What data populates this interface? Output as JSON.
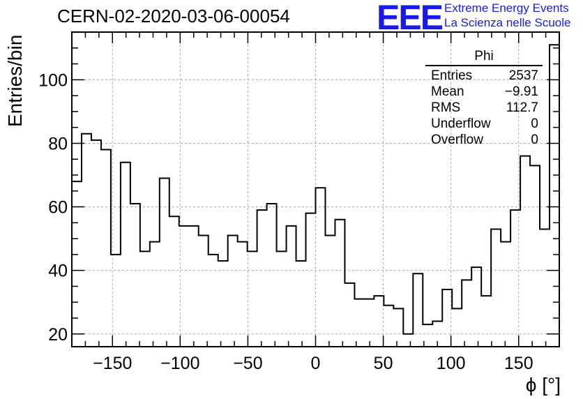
{
  "header": {
    "run_title": "CERN-02-2020-03-06-00054",
    "logo_mark": "EEE",
    "logo_line1": "Extreme Energy Events",
    "logo_line2": "La Scienza nelle Scuole"
  },
  "stats_box": {
    "title": "Phi",
    "rows": [
      {
        "label": "Entries",
        "value": "2537"
      },
      {
        "label": "Mean",
        "value": "−9.91"
      },
      {
        "label": "RMS",
        "value": "112.7"
      },
      {
        "label": "Underflow",
        "value": "0"
      },
      {
        "label": "Overflow",
        "value": "0"
      }
    ]
  },
  "colors": {
    "logo": "#1a1ae6",
    "line": "#000000",
    "grid": "#aaaaaa"
  },
  "chart_data": {
    "type": "histogram",
    "title": "CERN-02-2020-03-06-00054",
    "xlabel": "ϕ [°]",
    "ylabel": "Entries/bin",
    "xlim": [
      -180,
      180
    ],
    "ylim": [
      16,
      115
    ],
    "bin_width": 7.2,
    "bin_edges_start": -180,
    "xticks": [
      -150,
      -100,
      -50,
      0,
      50,
      100,
      150
    ],
    "xtick_labels": [
      "−150",
      "−100",
      "−50",
      "0",
      "50",
      "100",
      "150"
    ],
    "yticks": [
      20,
      40,
      60,
      80,
      100
    ],
    "ytick_labels": [
      "20",
      "40",
      "60",
      "80",
      "100"
    ],
    "grid": true,
    "values": [
      68,
      83,
      81,
      78,
      45,
      74,
      61,
      46,
      49,
      69,
      57,
      54,
      54,
      51,
      45,
      43,
      51,
      49,
      46,
      59,
      61,
      46,
      54,
      43,
      58,
      66,
      51,
      56,
      36,
      31,
      31,
      32,
      29,
      28,
      20,
      39,
      23,
      24,
      34,
      28,
      37,
      41,
      32,
      53,
      49,
      59,
      76,
      73,
      53,
      111
    ]
  }
}
